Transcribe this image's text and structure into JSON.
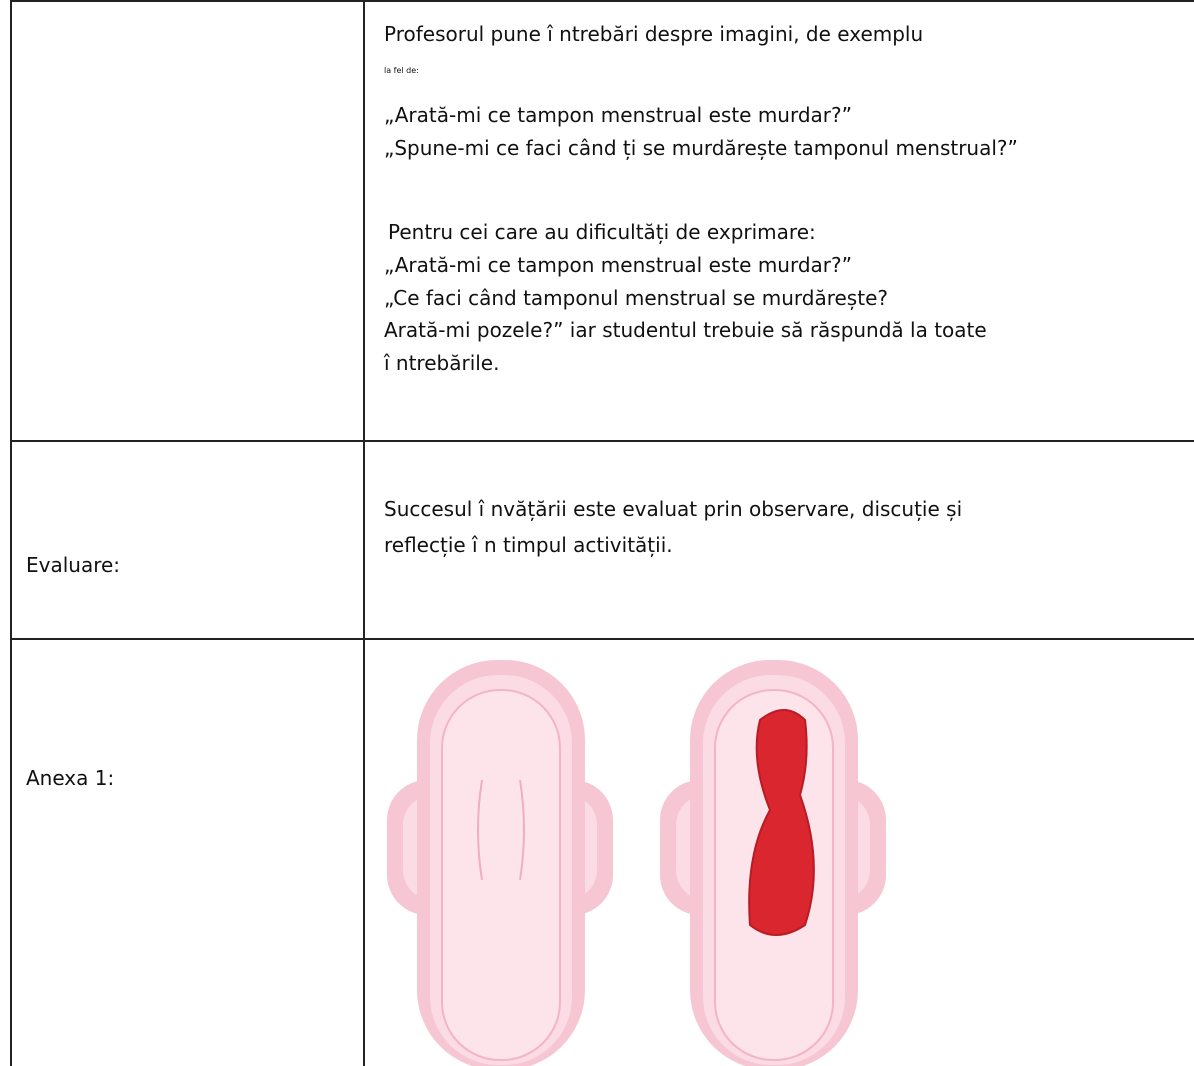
{
  "table": {
    "rows": [
      {
        "label": null,
        "lines": [
          "Profesorul pune î ntrebări despre imagini, de exemplu",
          "la fel de:",
          "„Arată-mi ce tampon menstrual este murdar?”",
          "„Spune-mi ce faci când ți se murdărește tamponul menstrual?”",
          "Pentru cei care au dificultăți de exprimare:",
          "„Arată-mi ce tampon menstrual este murdar?”",
          "„Ce faci când tamponul menstrual se murdărește?",
          "Arată-mi pozele?” iar studentul trebuie să răspundă la toate",
          "î ntrebările."
        ]
      },
      {
        "label": "Evaluare:",
        "lines": [
          "Succesul î nvățării este evaluat prin observare, discuție și",
          "reflecție î n timpul activității."
        ]
      },
      {
        "label": "Anexa 1:",
        "lines": []
      }
    ]
  }
}
